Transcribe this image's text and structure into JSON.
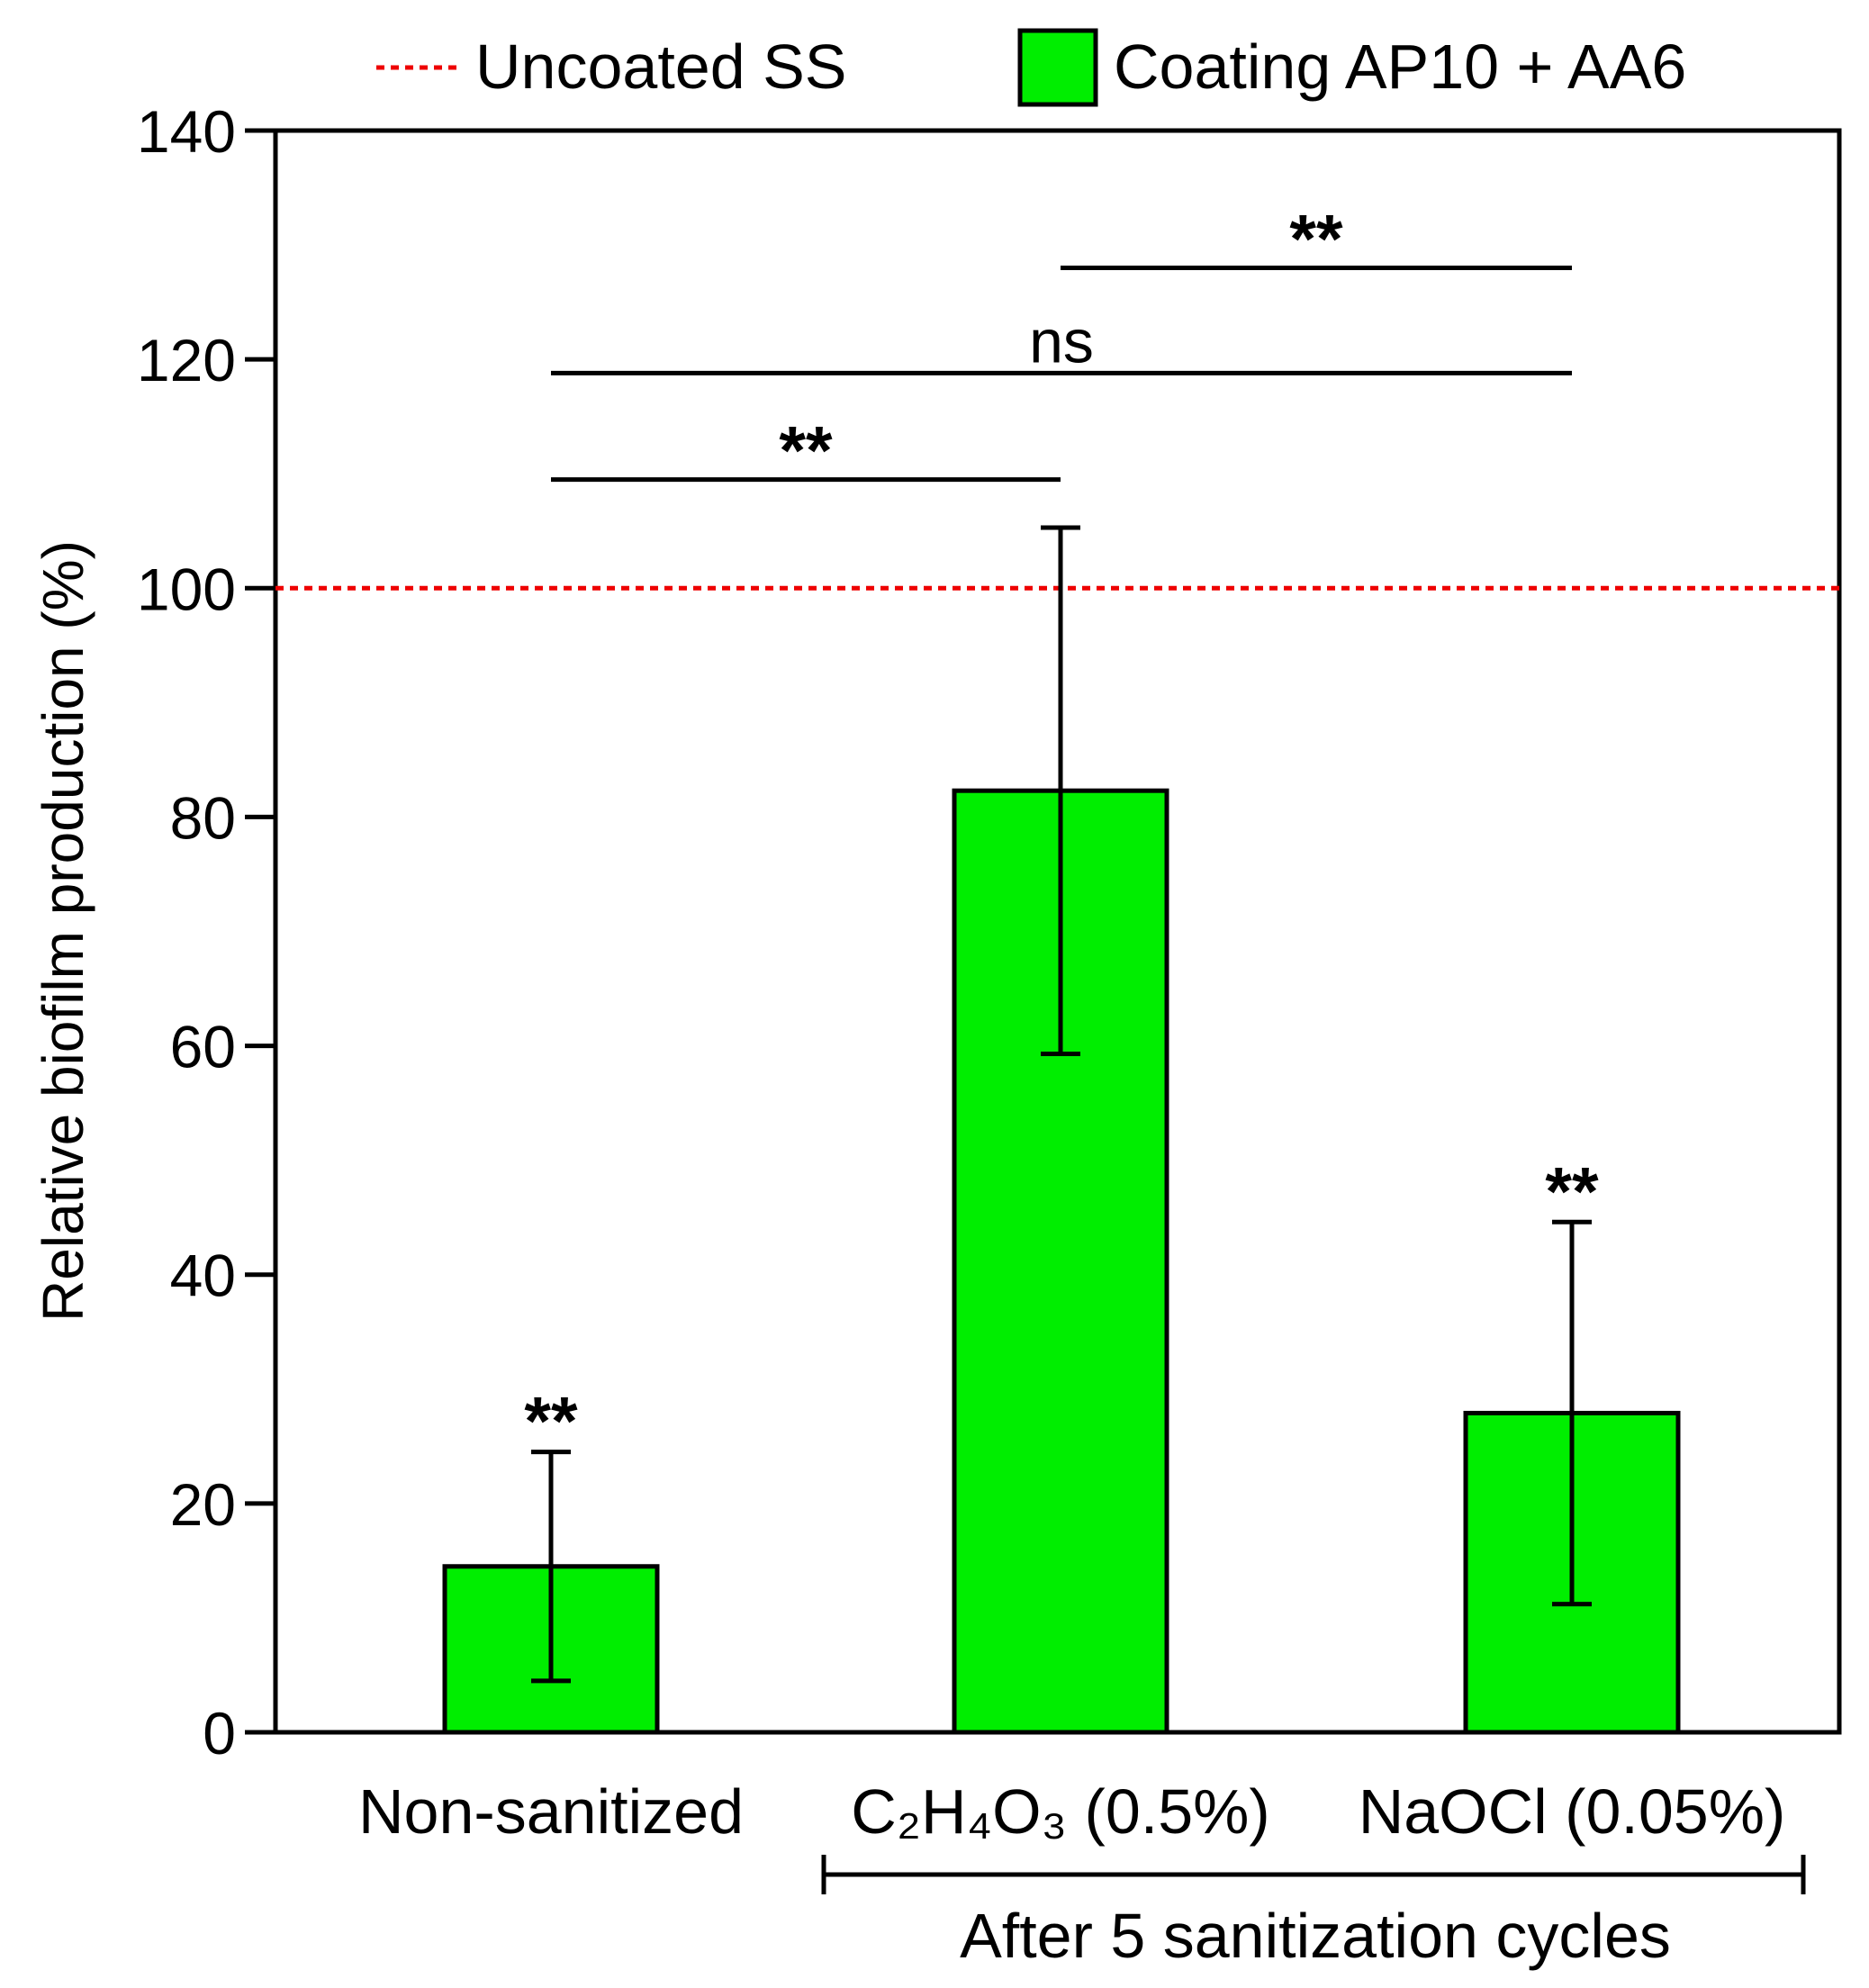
{
  "chart_data": {
    "type": "bar",
    "title": "",
    "xlabel": "",
    "ylabel": "Relative biofilm production (%)",
    "ylim": [
      0,
      140
    ],
    "yticks": [
      0,
      20,
      40,
      60,
      80,
      100,
      120,
      140
    ],
    "categories": [
      {
        "id": "nonsan",
        "label": "Non-sanitized"
      },
      {
        "id": "c2h4o3",
        "label": "C₂H₄O₃ (0.5%)"
      },
      {
        "id": "naocl",
        "label": "NaOCl (0.05%)"
      }
    ],
    "series": [
      {
        "name": "Coating AP10 + AA6",
        "color": "#00ee00",
        "values": [
          14.5,
          82.3,
          27.9
        ],
        "error": [
          10.0,
          23.0,
          16.7
        ],
        "annotations": [
          "**",
          "",
          "**"
        ]
      }
    ],
    "reference_line": {
      "name": "Uncoated SS",
      "value": 100,
      "color": "#ee0000",
      "style": "dashed"
    },
    "comparisons": [
      {
        "from": 0,
        "to": 1,
        "y": 109.5,
        "label": "**"
      },
      {
        "from": 0,
        "to": 2,
        "y": 118.8,
        "label": "ns"
      },
      {
        "from": 1,
        "to": 2,
        "y": 128.0,
        "label": "**"
      }
    ],
    "group_bracket": {
      "from": 1,
      "to": 2,
      "label": "After 5 sanitization cycles"
    },
    "legend": {
      "position": "top"
    }
  }
}
